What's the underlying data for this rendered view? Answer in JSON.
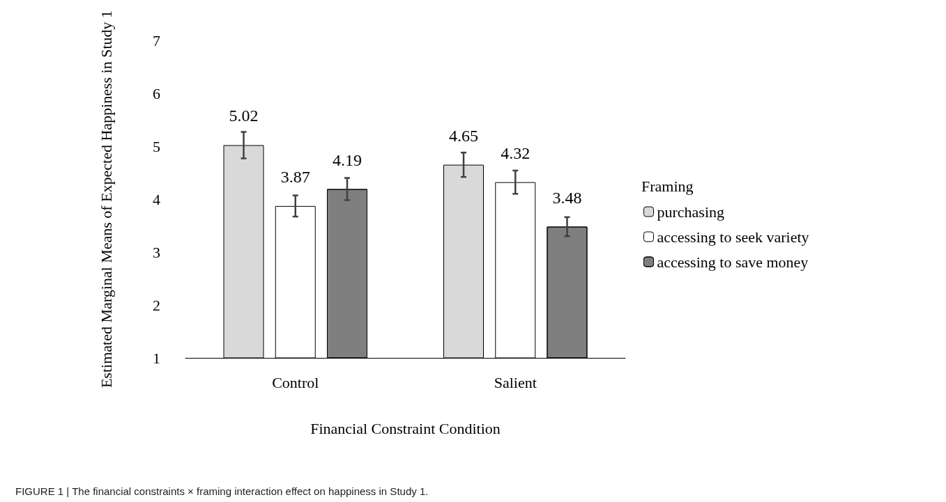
{
  "chart_data": {
    "type": "bar",
    "xlabel": "Financial Constraint Condition",
    "ylabel": "Estimated Marginal Means of Expected Happiness in Study 1",
    "legend_title": "Framing",
    "categories": [
      "Control",
      "Salient"
    ],
    "series": [
      {
        "name": "purchasing",
        "color": "#d9d9d9",
        "values": [
          5.02,
          4.65
        ],
        "errors": [
          0.25,
          0.23
        ]
      },
      {
        "name": "accessing to seek variety",
        "color": "#ffffff",
        "values": [
          3.87,
          4.32
        ],
        "errors": [
          0.2,
          0.22
        ]
      },
      {
        "name": "accessing to save money",
        "color": "#7f7f7f",
        "values": [
          4.19,
          3.48
        ],
        "errors": [
          0.21,
          0.18
        ]
      }
    ],
    "ylim": [
      1,
      7
    ],
    "yticks": [
      1,
      2,
      3,
      4,
      5,
      6,
      7
    ],
    "grid": false,
    "legend": "right",
    "data_labels": true,
    "annotations": [
      "FIGURE 1 | The financial constraints × framing interaction effect on happiness in Study 1."
    ]
  }
}
